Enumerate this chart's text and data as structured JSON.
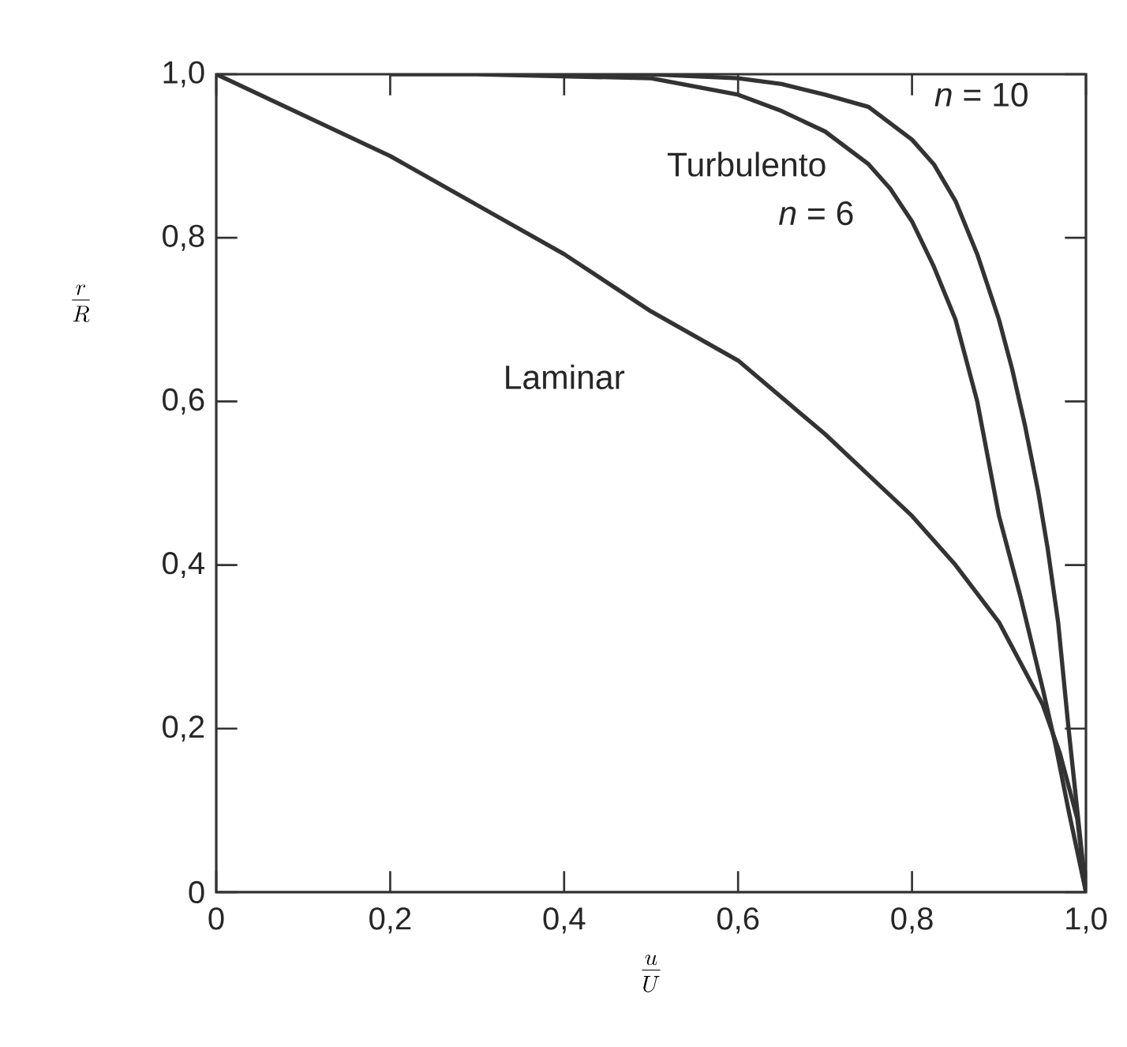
{
  "chart_data": {
    "type": "line",
    "xlabel": "\\frac{u}{U}",
    "ylabel": "\\frac{r}{R}",
    "xlim": [
      0,
      1
    ],
    "ylim": [
      0,
      1
    ],
    "xticks": [
      0,
      {
        "value": 0.2,
        "label": "0,2"
      },
      {
        "value": 0.4,
        "label": "0,4"
      },
      {
        "value": 0.6,
        "label": "0,6"
      },
      {
        "value": 0.8,
        "label": "0,8"
      },
      {
        "value": 1,
        "label": "1,0"
      }
    ],
    "yticks": [
      0,
      {
        "value": 0.2,
        "label": "0,2"
      },
      {
        "value": 0.4,
        "label": "0,4"
      },
      {
        "value": 0.6,
        "label": "0,6"
      },
      {
        "value": 0.8,
        "label": "0,8"
      },
      {
        "value": 1,
        "label": "1,0"
      }
    ],
    "series": [
      {
        "color": "#333333",
        "x": [
          0,
          0.1,
          0.2,
          0.3,
          0.4,
          0.5,
          0.6,
          0.7,
          0.75,
          0.8,
          0.85,
          0.9,
          0.93,
          0.95,
          0.97,
          0.98,
          0.99,
          1
        ],
        "values": [
          1,
          0.95,
          0.9,
          0.84,
          0.78,
          0.71,
          0.65,
          0.56,
          0.51,
          0.46,
          0.4,
          0.33,
          0.27,
          0.23,
          0.17,
          0.13,
          0.09,
          0
        ]
      },
      {
        "color": "#333333",
        "x": [
          0.2,
          0.3,
          0.5,
          0.6,
          0.65,
          0.7,
          0.75,
          0.775,
          0.8,
          0.825,
          0.85,
          0.875,
          0.9,
          0.925,
          0.95,
          0.965,
          0.98,
          1
        ],
        "values": [
          1,
          1,
          0.995,
          0.975,
          0.955,
          0.93,
          0.89,
          0.86,
          0.82,
          0.765,
          0.7,
          0.6,
          0.46,
          0.36,
          0.25,
          0.18,
          0.1,
          0
        ]
      },
      {
        "color": "#333333",
        "x": [
          0.4,
          0.5,
          0.6,
          0.65,
          0.7,
          0.75,
          0.775,
          0.8,
          0.825,
          0.85,
          0.875,
          0.9,
          0.915,
          0.93,
          0.945,
          0.956,
          0.968,
          0.98,
          0.99,
          1
        ],
        "values": [
          1,
          1,
          0.995,
          0.988,
          0.975,
          0.96,
          0.94,
          0.92,
          0.89,
          0.845,
          0.78,
          0.7,
          0.64,
          0.57,
          0.49,
          0.42,
          0.33,
          0.2,
          0.1,
          0
        ]
      }
    ],
    "annotations": [
      "Laminar",
      "Turbulento",
      "*n* = 6",
      "*n* = 10"
    ]
  }
}
